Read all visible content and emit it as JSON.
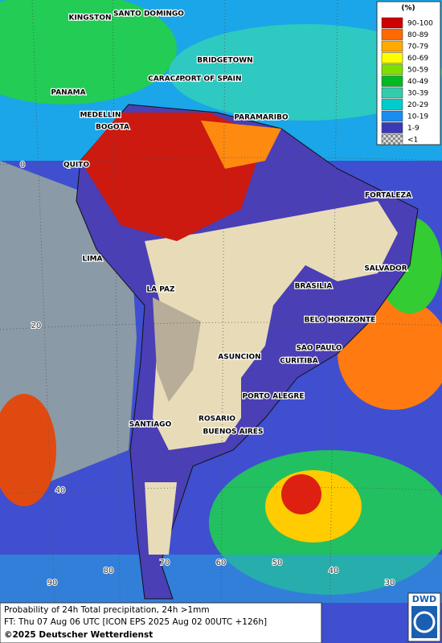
{
  "legend": {
    "title": "(%)",
    "items": [
      {
        "label": "90-100",
        "color": "#cc0000"
      },
      {
        "label": "80-89",
        "color": "#ff6a00"
      },
      {
        "label": "70-79",
        "color": "#ffaa00"
      },
      {
        "label": "60-69",
        "color": "#ffff00"
      },
      {
        "label": "50-59",
        "color": "#7ee000"
      },
      {
        "label": "40-49",
        "color": "#00bb22"
      },
      {
        "label": "30-39",
        "color": "#33ccaa"
      },
      {
        "label": "20-29",
        "color": "#00cccc"
      },
      {
        "label": "10-19",
        "color": "#1a8ef0"
      },
      {
        "label": "1-9",
        "color": "#3a3ab8"
      },
      {
        "label": "<1",
        "color": "checker"
      }
    ]
  },
  "cities": [
    "KINGSTON",
    "SANTO DOMINGO",
    "BRIDGETOWN",
    "CARACAS",
    "PORT OF SPAIN",
    "PANAMA",
    "MEDELLIN",
    "BOGOTA",
    "PARAMARIBO",
    "QUITO",
    "FORTALEZA",
    "LIMA",
    "SALVADOR",
    "LA PAZ",
    "BRASILIA",
    "BELO HORIZONTE",
    "SAO PAULO",
    "ASUNCION",
    "CURITIBA",
    "PORTO ALEGRE",
    "ROSARIO",
    "SANTIAGO",
    "BUENOS AIRES"
  ],
  "grid_labels": [
    "0",
    "20",
    "40",
    "90",
    "80",
    "70",
    "60",
    "50",
    "40",
    "30"
  ],
  "footer": {
    "line1": "Probability of 24h Total precipitation, 24h >1mm",
    "line2": "FT: Thu 07 Aug 06 UTC [ICON EPS 2025 Aug 02 00UTC +126h]",
    "copyright": "©2025 Deutscher Wetterdienst"
  },
  "logo": "DWD"
}
